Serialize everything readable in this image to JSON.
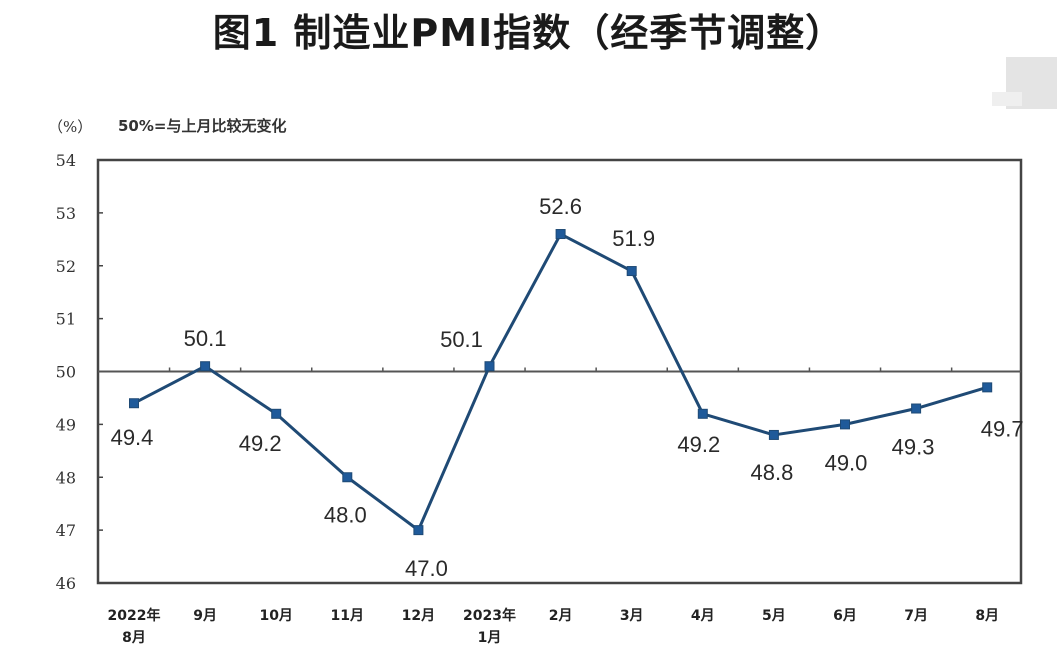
{
  "title": "图1 制造业PMI指数（经季节调整）",
  "unit_label": "（%）",
  "note": "50%=与上月比较无变化",
  "colors": {
    "line": "#1f4a75",
    "marker": "#1f5a9a",
    "axis": "#444444",
    "text": "#2a2a2a"
  },
  "chart_data": {
    "type": "line",
    "title": "图1 制造业PMI指数（经季节调整）",
    "xlabel": "",
    "ylabel": "（%）",
    "annotation": "50%=与上月比较无变化",
    "ylim": [
      46,
      54
    ],
    "yticks": [
      46,
      47,
      48,
      49,
      50,
      51,
      52,
      53,
      54
    ],
    "reference_line": 50,
    "grid": false,
    "legend": "none",
    "categories": [
      [
        "2022年",
        "8月"
      ],
      [
        "9月"
      ],
      [
        "10月"
      ],
      [
        "11月"
      ],
      [
        "12月"
      ],
      [
        "2023年",
        "1月"
      ],
      [
        "2月"
      ],
      [
        "3月"
      ],
      [
        "4月"
      ],
      [
        "5月"
      ],
      [
        "6月"
      ],
      [
        "7月"
      ],
      [
        "8月"
      ]
    ],
    "series": [
      {
        "name": "制造业PMI",
        "values": [
          49.4,
          50.1,
          49.2,
          48.0,
          47.0,
          50.1,
          52.6,
          51.9,
          49.2,
          48.8,
          49.0,
          49.3,
          49.7
        ]
      }
    ],
    "labels": [
      "49.4",
      "50.1",
      "49.2",
      "48.0",
      "47.0",
      "50.1",
      "52.6",
      "51.9",
      "49.2",
      "48.8",
      "49.0",
      "49.3",
      "49.7"
    ],
    "label_positions": [
      "below",
      "above",
      "below",
      "below",
      "below",
      "above-left",
      "above",
      "above-right",
      "below",
      "below",
      "below",
      "below",
      "below"
    ]
  }
}
